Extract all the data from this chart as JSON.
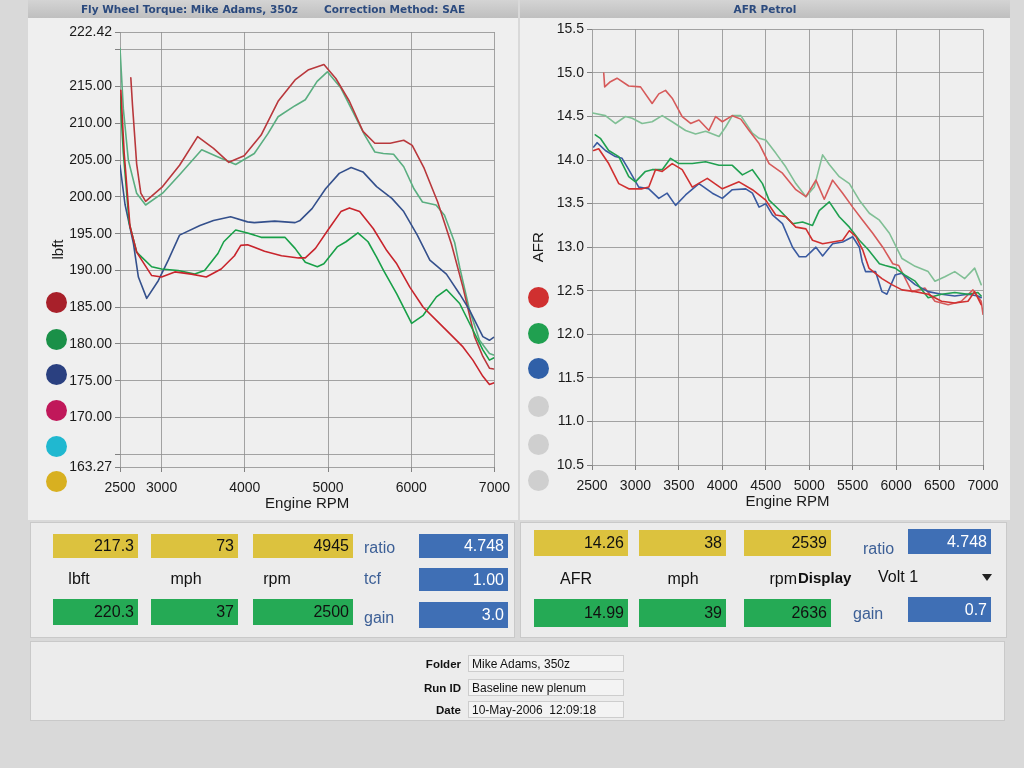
{
  "chart_data": [
    {
      "type": "line",
      "title": "Fly Wheel Torque: Mike Adams, 350z",
      "subtitle": "Correction Method: SAE",
      "xlabel": "Engine RPM",
      "ylabel": "lbft",
      "xlim": [
        2500,
        7000
      ],
      "xticks": [
        2500,
        3000,
        4000,
        5000,
        6000,
        7000
      ],
      "ylim": [
        163.27,
        222.42
      ],
      "yticks": [
        163.27,
        {
          "value": 165,
          "label": null
        },
        {
          "value": 170,
          "label": "170.00"
        },
        {
          "value": 175,
          "label": "175.00"
        },
        {
          "value": 180,
          "label": "180.00"
        },
        {
          "value": 185,
          "label": "185.00"
        },
        {
          "value": 190,
          "label": "190.00"
        },
        {
          "value": 195,
          "label": "195.00"
        },
        {
          "value": 200,
          "label": "200.00"
        },
        {
          "value": 205,
          "label": "205.00"
        },
        {
          "value": 210,
          "label": "210.00"
        },
        {
          "value": 215,
          "label": "215.00"
        },
        {
          "value": 220,
          "label": null
        },
        222.42
      ],
      "grid": true,
      "series": [
        {
          "color": "#c8242c",
          "x": [
            2510,
            2550,
            2620,
            2700,
            2761,
            2881,
            3000,
            3159,
            3358,
            3537,
            3716,
            3876,
            3951,
            4033,
            4237,
            4441,
            4645,
            4727,
            4849,
            5012,
            5155,
            5257,
            5380,
            5543,
            5706,
            5826,
            5985,
            6144,
            6303,
            6463,
            6622,
            6741,
            6861,
            6940,
            6990
          ],
          "values": [
            214.5,
            206,
            196,
            192.5,
            191.4,
            189.3,
            189.1,
            189.8,
            189.5,
            189.1,
            190.2,
            192,
            193.4,
            193.5,
            192.6,
            192,
            191.7,
            191.7,
            193,
            195.7,
            198,
            198.5,
            198,
            195.7,
            192.7,
            190.9,
            187.7,
            185,
            183.2,
            181.4,
            179.6,
            177.8,
            175.6,
            174.5,
            174.7
          ]
        },
        {
          "color": "#18a048",
          "x": [
            2500,
            2540,
            2610,
            2700,
            2761,
            2881,
            3000,
            3199,
            3398,
            3517,
            3677,
            3747,
            3890,
            4033,
            4196,
            4400,
            4482,
            4604,
            4727,
            4872,
            4950,
            5110,
            5216,
            5359,
            5481,
            5584,
            5667,
            5826,
            6005,
            6144,
            6303,
            6423,
            6582,
            6741,
            6861,
            6940,
            6990
          ],
          "values": [
            214,
            206,
            196.5,
            192.5,
            191.8,
            190.5,
            190.2,
            190,
            189.5,
            190,
            192.3,
            193.9,
            195.5,
            195.1,
            194.5,
            194.5,
            194.5,
            193,
            191.1,
            190.5,
            190.9,
            193.2,
            193.9,
            195.1,
            193.9,
            191.8,
            190,
            186.8,
            182.8,
            183.9,
            186.4,
            187.4,
            185.5,
            181.9,
            179.2,
            177.8,
            178.1
          ]
        },
        {
          "color": "#34508c",
          "x": [
            2500,
            2560,
            2662,
            2721,
            2821,
            2960,
            3080,
            3216,
            3461,
            3624,
            3829,
            4033,
            4114,
            4359,
            4604,
            4665,
            4808,
            4971,
            5135,
            5278,
            5420,
            5584,
            5767,
            5910,
            6073,
            6224,
            6423,
            6582,
            6701,
            6861,
            6940,
            6990
          ],
          "values": [
            204.3,
            199,
            193.6,
            189.1,
            186.2,
            188.6,
            191.4,
            194.8,
            196.1,
            196.8,
            197.3,
            196.6,
            196.5,
            196.7,
            196.5,
            196.8,
            198.4,
            201.1,
            203.2,
            204,
            203.4,
            201.4,
            199.8,
            198,
            194.8,
            191.4,
            189.5,
            186.8,
            184.6,
            181,
            180.5,
            180.9
          ]
        },
        {
          "color": "#b8383c",
          "x": [
            2630,
            2650,
            2700,
            2750,
            2808,
            3012,
            3216,
            3433,
            3624,
            3808,
            3992,
            4196,
            4400,
            4604,
            4767,
            4951,
            5094,
            5257,
            5420,
            5563,
            5747,
            5910,
            6012,
            6155,
            6318,
            6483,
            6622,
            6761,
            6861,
            6940,
            6990
          ],
          "values": [
            216.2,
            212.5,
            204.5,
            200.5,
            199.4,
            201.4,
            204.3,
            208.2,
            206.6,
            204.7,
            205.6,
            208.4,
            213,
            215.9,
            217.3,
            218,
            216.1,
            213,
            208.9,
            207.3,
            207.3,
            207.7,
            207,
            203.9,
            199.3,
            193.6,
            187.7,
            181,
            178.3,
            176.7,
            176.6
          ]
        },
        {
          "color": "#5aae80",
          "x": [
            2500,
            2540,
            2600,
            2700,
            2808,
            3012,
            3216,
            3482,
            3665,
            3890,
            4114,
            4278,
            4400,
            4604,
            4727,
            4869,
            4992,
            5155,
            5298,
            5441,
            5563,
            5665,
            5788,
            5910,
            6033,
            6135,
            6298,
            6400,
            6522,
            6583,
            6701,
            6821,
            6940,
            6990
          ],
          "values": [
            220.2,
            212,
            205,
            200.5,
            198.9,
            200.5,
            203,
            206.4,
            205.5,
            204.4,
            205.9,
            208.6,
            210.9,
            212.4,
            213.2,
            215.7,
            217,
            214.8,
            211.6,
            208.4,
            206.1,
            205.9,
            205.8,
            204.1,
            201.1,
            199.3,
            198.9,
            197.5,
            193.8,
            190.4,
            184.6,
            180.5,
            178.7,
            178.5
          ]
        }
      ]
    },
    {
      "type": "line",
      "title": "AFR Petrol",
      "xlabel": "Engine RPM",
      "ylabel": "AFR",
      "xlim": [
        2500,
        7000
      ],
      "xticks": [
        2500,
        3000,
        3500,
        4000,
        4500,
        5000,
        5500,
        6000,
        6500,
        7000
      ],
      "ylim": [
        10.5,
        15.5
      ],
      "yticks": [
        10.5,
        {
          "value": 11,
          "label": "11.0"
        },
        11.5,
        {
          "value": 12,
          "label": "12.0"
        },
        12.5,
        {
          "value": 13,
          "label": "13.0"
        },
        13.5,
        {
          "value": 14,
          "label": "14.0"
        },
        14.5,
        {
          "value": 15,
          "label": "15.0"
        },
        15.5
      ],
      "grid": true,
      "series": [
        {
          "color": "#d03030",
          "x": [
            2519,
            2577,
            2692,
            2808,
            2923,
            3077,
            3154,
            3231,
            3308,
            3423,
            3538,
            3654,
            3827,
            4000,
            4192,
            4346,
            4500,
            4615,
            4731,
            4846,
            4962,
            5038,
            5154,
            5269,
            5385,
            5462,
            5538,
            5615,
            5687,
            5837,
            5951,
            6068,
            6219,
            6369,
            6523,
            6675,
            6827,
            6904,
            6979
          ],
          "values": [
            14.11,
            14.13,
            13.96,
            13.73,
            13.67,
            13.67,
            13.69,
            13.89,
            13.87,
            13.96,
            13.89,
            13.69,
            13.79,
            13.67,
            13.75,
            13.66,
            13.54,
            13.37,
            13.35,
            13.23,
            13.21,
            13.08,
            13.04,
            13.06,
            13.08,
            13.19,
            13.12,
            12.97,
            12.76,
            12.64,
            12.57,
            12.51,
            12.49,
            12.46,
            12.38,
            12.36,
            12.38,
            12.49,
            12.34
          ]
        },
        {
          "color": "#20a050",
          "x": [
            2538,
            2596,
            2692,
            2808,
            2923,
            3000,
            3115,
            3192,
            3308,
            3404,
            3500,
            3654,
            3808,
            3962,
            4115,
            4231,
            4346,
            4462,
            4538,
            4654,
            4808,
            4923,
            5038,
            5115,
            5231,
            5346,
            5462,
            5577,
            5673,
            5808,
            5875,
            5989,
            6103,
            6219,
            6369,
            6523,
            6675,
            6827,
            6941,
            6979
          ],
          "values": [
            14.29,
            14.25,
            14.11,
            14.04,
            13.81,
            13.75,
            13.87,
            13.89,
            13.89,
            14.02,
            13.96,
            13.96,
            13.98,
            13.94,
            13.94,
            13.83,
            13.89,
            13.73,
            13.54,
            13.43,
            13.27,
            13.29,
            13.25,
            13.42,
            13.52,
            13.35,
            13.23,
            13.08,
            12.98,
            12.81,
            12.79,
            12.76,
            12.68,
            12.61,
            12.42,
            12.46,
            12.48,
            12.46,
            12.48,
            12.44
          ]
        },
        {
          "color": "#3a5aa0",
          "x": [
            2519,
            2558,
            2654,
            2769,
            2846,
            2923,
            3038,
            3154,
            3269,
            3365,
            3462,
            3577,
            3731,
            3885,
            4000,
            4115,
            4269,
            4346,
            4423,
            4500,
            4577,
            4692,
            4808,
            4885,
            4962,
            5077,
            5154,
            5269,
            5385,
            5500,
            5577,
            5610,
            5648,
            5763,
            5837,
            5894,
            5989,
            6065,
            6219,
            6369,
            6523,
            6675,
            6827,
            6941,
            6979
          ],
          "values": [
            14.15,
            14.2,
            14.11,
            14.04,
            14.02,
            13.89,
            13.69,
            13.67,
            13.56,
            13.62,
            13.48,
            13.6,
            13.73,
            13.62,
            13.56,
            13.66,
            13.67,
            13.62,
            13.46,
            13.5,
            13.37,
            13.27,
            13,
            12.89,
            12.89,
            13,
            12.9,
            13.04,
            13.06,
            13.12,
            13,
            12.83,
            12.72,
            12.72,
            12.49,
            12.46,
            12.68,
            12.7,
            12.57,
            12.49,
            12.46,
            12.44,
            12.46,
            12.44,
            12.42
          ]
        },
        {
          "color": "#d65a5a",
          "x": [
            2635,
            2646,
            2712,
            2788,
            2923,
            3058,
            3192,
            3269,
            3346,
            3423,
            3538,
            3635,
            3731,
            3846,
            3923,
            4000,
            4115,
            4212,
            4308,
            4423,
            4538,
            4692,
            4846,
            4962,
            5077,
            5173,
            5269,
            5385,
            5500,
            5615,
            5731,
            5846,
            5962,
            6030,
            6181,
            6333,
            6447,
            6599,
            6751,
            6884,
            6979,
            7000
          ],
          "values": [
            15,
            14.84,
            14.9,
            14.94,
            14.85,
            14.84,
            14.65,
            14.76,
            14.8,
            14.71,
            14.5,
            14.42,
            14.46,
            14.34,
            14.5,
            14.44,
            14.51,
            14.47,
            14.34,
            14.19,
            13.96,
            13.85,
            13.66,
            13.58,
            13.77,
            13.55,
            13.77,
            13.62,
            13.46,
            13.31,
            13.16,
            13,
            12.81,
            12.79,
            12.49,
            12.53,
            12.38,
            12.34,
            12.38,
            12.51,
            12.38,
            12.23
          ]
        },
        {
          "color": "#80bf95",
          "x": [
            2508,
            2654,
            2769,
            2885,
            2962,
            3077,
            3192,
            3308,
            3423,
            3577,
            3692,
            3808,
            3962,
            4038,
            4115,
            4212,
            4346,
            4423,
            4500,
            4615,
            4731,
            4846,
            4962,
            5058,
            5154,
            5231,
            5346,
            5462,
            5577,
            5692,
            5808,
            5923,
            6038,
            6068,
            6219,
            6369,
            6447,
            6561,
            6675,
            6790,
            6904,
            6979
          ],
          "values": [
            14.54,
            14.51,
            14.42,
            14.5,
            14.48,
            14.42,
            14.44,
            14.51,
            14.44,
            14.34,
            14.3,
            14.33,
            14.27,
            14.38,
            14.51,
            14.51,
            14.31,
            14.25,
            14.23,
            14.08,
            13.92,
            13.73,
            13.58,
            13.69,
            14.06,
            13.95,
            13.81,
            13.73,
            13.54,
            13.39,
            13.31,
            13.16,
            12.93,
            12.87,
            12.78,
            12.72,
            12.61,
            12.66,
            12.72,
            12.64,
            12.76,
            12.57
          ]
        }
      ]
    },
    {
      "type": "other",
      "annotations": [
        "217.3",
        "73",
        "4945",
        "ratio",
        "4.748",
        "lbft",
        "mph",
        "rpm",
        "tcf",
        "1.00",
        "220.3",
        "37",
        "2500",
        "gain",
        "3.0"
      ]
    },
    {
      "type": "other",
      "annotations": [
        "14.26",
        "38",
        "2539",
        "ratio",
        "4.748",
        "AFR",
        "mph",
        "rpm",
        "Display",
        "Volt 1",
        "14.99",
        "39",
        "2636",
        "gain",
        "0.7"
      ]
    },
    {
      "type": "other",
      "annotations": [
        "Folder",
        "Mike Adams, 350z",
        "Run ID",
        "Baseline new plenum",
        "Date",
        "10-May-2006  12:09:18"
      ]
    }
  ]
}
